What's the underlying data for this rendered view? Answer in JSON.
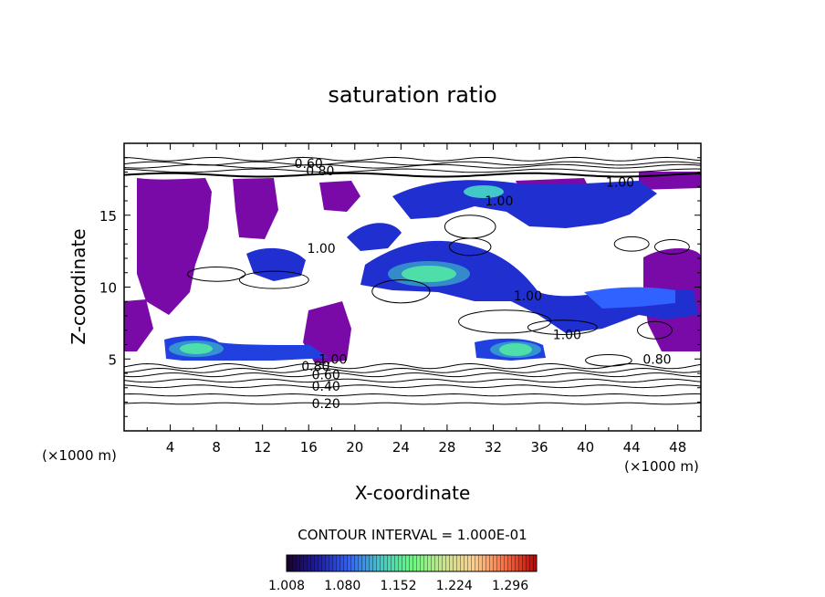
{
  "chart_data": {
    "type": "heatmap",
    "title": "saturation ratio",
    "xlabel": "X-coordinate",
    "ylabel": "Z-coordinate",
    "x_unit_label": "(×1000 m)",
    "y_unit_label": "(×1000 m)",
    "xlim": [
      0,
      50
    ],
    "ylim": [
      0,
      20
    ],
    "x_ticks": [
      4,
      8,
      12,
      16,
      20,
      24,
      28,
      32,
      36,
      40,
      44,
      48
    ],
    "y_ticks": [
      5,
      10,
      15
    ],
    "contour_interval_text": "CONTOUR INTERVAL = 1.000E-01",
    "contour_labels": [
      {
        "text": "0.60",
        "x": 16,
        "y": 18.6
      },
      {
        "text": "0.80",
        "x": 17,
        "y": 18.1
      },
      {
        "text": "1.00",
        "x": 43,
        "y": 17.3
      },
      {
        "text": "1.00",
        "x": 32.5,
        "y": 16.0
      },
      {
        "text": "1.00",
        "x": 17.1,
        "y": 12.7
      },
      {
        "text": "1.00",
        "x": 35,
        "y": 9.4
      },
      {
        "text": "1.00",
        "x": 38.4,
        "y": 6.7
      },
      {
        "text": "0.80",
        "x": 46.2,
        "y": 5.0
      },
      {
        "text": "1.00",
        "x": 18.1,
        "y": 5.0
      },
      {
        "text": "0.80",
        "x": 16.6,
        "y": 4.5
      },
      {
        "text": "0.60",
        "x": 17.5,
        "y": 3.9
      },
      {
        "text": "0.40",
        "x": 17.5,
        "y": 3.1
      },
      {
        "text": "0.20",
        "x": 17.5,
        "y": 1.9
      }
    ],
    "colorbar": {
      "min": 1.008,
      "max": 1.33,
      "ticks": [
        "1.008",
        "1.080",
        "1.152",
        "1.224",
        "1.296"
      ],
      "colors": [
        "#1a0030",
        "#1c1ca8",
        "#2f62ff",
        "#43c8c8",
        "#5fff7a",
        "#c8e68c",
        "#ffcf8a",
        "#ff6a3c",
        "#c00000"
      ]
    },
    "fill_color": "#7a0aa8"
  }
}
